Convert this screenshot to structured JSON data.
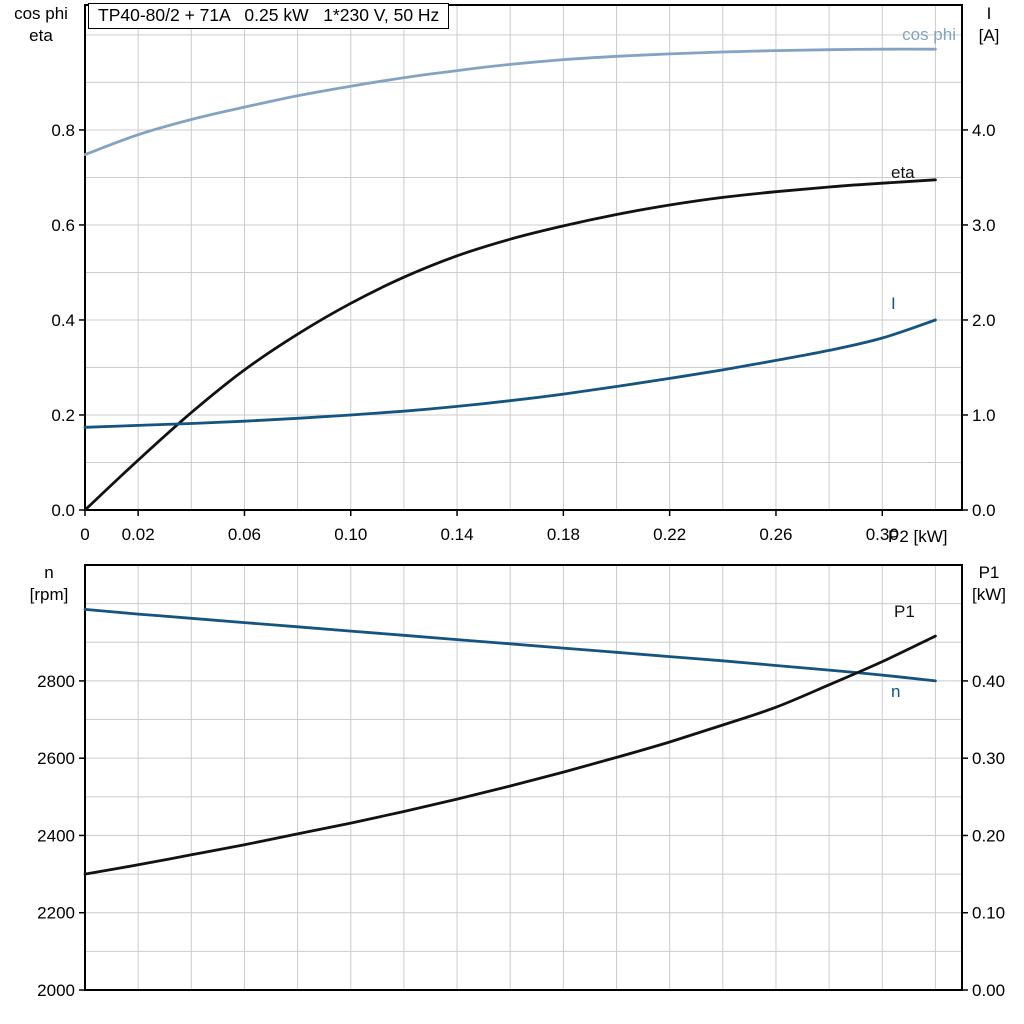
{
  "title_box": {
    "text": "TP40-80/2 + 71A   0.25 kW   1*230 V, 50 Hz"
  },
  "axes_labels": {
    "top_left_1": "cos phi",
    "top_left_2": "eta",
    "top_right_1": "I",
    "top_right_2": "[A]",
    "bottom_left_1": "n",
    "bottom_left_2": "[rpm]",
    "bottom_right_1": "P1",
    "bottom_right_2": "[kW]",
    "x_label": "P2 [kW]"
  },
  "colors": {
    "cos_phi": "#84a3c3",
    "dark_blue": "#155480",
    "black_line": "#121212",
    "grid": "#cccccc",
    "axis": "#000000",
    "text": "#000000",
    "background": "#ffffff"
  },
  "chart_data": [
    {
      "type": "line",
      "panel": "top",
      "title": "TP40-80/2 + 71A   0.25 kW   1*230 V, 50 Hz",
      "x_axis": {
        "label": "P2 [kW]",
        "range": [
          0,
          0.33
        ],
        "grid_step": 0.02,
        "tick_values": [
          0,
          0.02,
          0.06,
          0.1,
          0.14,
          0.18,
          0.22,
          0.26,
          0.3
        ],
        "tick_labels": [
          "0",
          "0.02",
          "0.06",
          "0.10",
          "0.14",
          "0.18",
          "0.22",
          "0.26",
          "0.30"
        ]
      },
      "left_axis": {
        "label": "cos phi / eta",
        "range": [
          0,
          1.063
        ],
        "grid_step": 0.1,
        "tick_values": [
          0.0,
          0.2,
          0.4,
          0.6,
          0.8
        ],
        "tick_labels": [
          "0.0",
          "0.2",
          "0.4",
          "0.6",
          "0.8"
        ]
      },
      "right_axis": {
        "label": "I [A]",
        "range": [
          0,
          5.315
        ],
        "tick_values": [
          0.0,
          1.0,
          2.0,
          3.0,
          4.0
        ],
        "tick_labels": [
          "0.0",
          "1.0",
          "2.0",
          "3.0",
          "4.0"
        ]
      },
      "x": [
        0,
        0.02,
        0.04,
        0.06,
        0.08,
        0.1,
        0.12,
        0.14,
        0.16,
        0.18,
        0.2,
        0.22,
        0.24,
        0.26,
        0.28,
        0.3,
        0.32
      ],
      "series": [
        {
          "name": "cos phi",
          "axis": "left",
          "color_key": "cos_phi",
          "values": [
            0.748,
            0.79,
            0.822,
            0.848,
            0.872,
            0.892,
            0.91,
            0.925,
            0.938,
            0.948,
            0.955,
            0.96,
            0.964,
            0.967,
            0.969,
            0.97,
            0.97
          ],
          "label_x": 956,
          "label_y": 40,
          "label_anchor": "end"
        },
        {
          "name": "eta",
          "axis": "left",
          "color_key": "black_line",
          "values": [
            0,
            0.105,
            0.205,
            0.295,
            0.37,
            0.435,
            0.49,
            0.535,
            0.57,
            0.598,
            0.622,
            0.642,
            0.658,
            0.67,
            0.68,
            0.688,
            0.695
          ],
          "label_x": 891,
          "label_y": 178,
          "label_anchor": "start"
        },
        {
          "name": "I",
          "axis": "right",
          "color_key": "dark_blue",
          "values": [
            0.87,
            0.89,
            0.91,
            0.935,
            0.965,
            1.0,
            1.04,
            1.09,
            1.15,
            1.22,
            1.3,
            1.385,
            1.475,
            1.575,
            1.68,
            1.81,
            2.0
          ],
          "label_x": 891,
          "label_y": 309,
          "label_anchor": "start"
        }
      ]
    },
    {
      "type": "line",
      "panel": "bottom",
      "title": "",
      "x_axis": {
        "label": "",
        "range": [
          0,
          0.33
        ],
        "grid_step": 0.02,
        "tick_values": [],
        "tick_labels": []
      },
      "left_axis": {
        "label": "n [rpm]",
        "range": [
          2000,
          3100
        ],
        "grid_step": 100,
        "tick_values": [
          2000,
          2200,
          2400,
          2600,
          2800
        ],
        "tick_labels": [
          "2000",
          "2200",
          "2400",
          "2600",
          "2800"
        ]
      },
      "right_axis": {
        "label": "P1 [kW]",
        "range": [
          0,
          0.55
        ],
        "tick_values": [
          0.0,
          0.1,
          0.2,
          0.3,
          0.4
        ],
        "tick_labels": [
          "0.00",
          "0.10",
          "0.20",
          "0.30",
          "0.40"
        ]
      },
      "x": [
        0,
        0.02,
        0.04,
        0.06,
        0.08,
        0.1,
        0.12,
        0.14,
        0.16,
        0.18,
        0.2,
        0.22,
        0.24,
        0.26,
        0.28,
        0.3,
        0.32
      ],
      "series": [
        {
          "name": "n",
          "axis": "left",
          "color_key": "dark_blue",
          "values": [
            2985,
            2973,
            2962,
            2951,
            2940,
            2929,
            2918,
            2907,
            2896,
            2885,
            2874,
            2863,
            2852,
            2840,
            2828,
            2815,
            2800
          ],
          "label_x": 891,
          "label_y": 697,
          "label_anchor": "start"
        },
        {
          "name": "P1",
          "axis": "right",
          "color_key": "black_line",
          "values": [
            0.15,
            0.162,
            0.175,
            0.188,
            0.202,
            0.216,
            0.231,
            0.247,
            0.264,
            0.282,
            0.301,
            0.321,
            0.343,
            0.366,
            0.395,
            0.425,
            0.458
          ],
          "label_x": 894,
          "label_y": 617,
          "label_anchor": "start"
        }
      ]
    }
  ]
}
